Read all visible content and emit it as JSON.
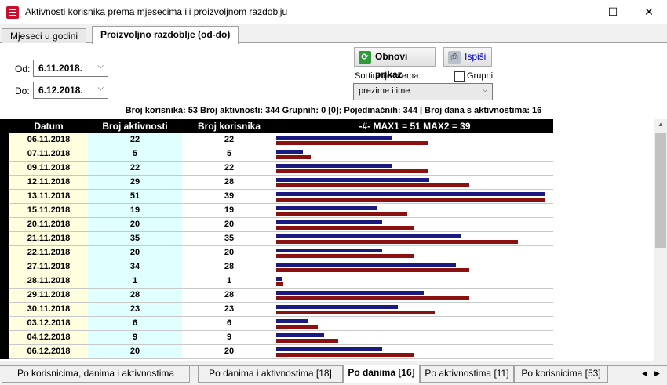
{
  "window": {
    "title": "Aktivnosti korisnika prema mjesecima ili proizvoljnom razdoblju",
    "minimize": "—",
    "maximize": "☐",
    "close": "✕"
  },
  "top_tabs": [
    {
      "label": "Mjeseci u godini"
    },
    {
      "label": "Proizvoljno razdoblje (od-do)"
    }
  ],
  "filters": {
    "od_label": "Od:",
    "od_value": "6.11.2018.",
    "do_label": "Do:",
    "do_value": "6.12.2018.",
    "refresh_label": "Obnovi prikaz",
    "print_label": "Ispiši",
    "sort_label": "Sortiranje prema:",
    "sort_value": "prezime i ime",
    "group_label": "Grupni",
    "group_checked": false
  },
  "summary": "Broj korisnika: 53   Broj aktivnosti: 344  Grupnih: 0 [0]; Pojedinačnih: 344  | Broj dana s aktivnostima: 16",
  "table": {
    "headers": [
      "Datum",
      "Broj aktivnosti",
      "Broj korisnika",
      "-#-  MAX1 = 51   MAX2 = 39"
    ],
    "max1": 51,
    "max2": 39,
    "rows": [
      {
        "date": "06.11.2018",
        "activities": 22,
        "users": 22
      },
      {
        "date": "07.11.2018",
        "activities": 5,
        "users": 5
      },
      {
        "date": "09.11.2018",
        "activities": 22,
        "users": 22
      },
      {
        "date": "12.11.2018",
        "activities": 29,
        "users": 28
      },
      {
        "date": "13.11.2018",
        "activities": 51,
        "users": 39
      },
      {
        "date": "15.11.2018",
        "activities": 19,
        "users": 19
      },
      {
        "date": "20.11.2018",
        "activities": 20,
        "users": 20
      },
      {
        "date": "21.11.2018",
        "activities": 35,
        "users": 35
      },
      {
        "date": "22.11.2018",
        "activities": 20,
        "users": 20
      },
      {
        "date": "27.11.2018",
        "activities": 34,
        "users": 28
      },
      {
        "date": "28.11.2018",
        "activities": 1,
        "users": 1
      },
      {
        "date": "29.11.2018",
        "activities": 28,
        "users": 28
      },
      {
        "date": "30.11.2018",
        "activities": 23,
        "users": 23
      },
      {
        "date": "03.12.2018",
        "activities": 6,
        "users": 6
      },
      {
        "date": "04.12.2018",
        "activities": 9,
        "users": 9
      },
      {
        "date": "06.12.2018",
        "activities": 20,
        "users": 20
      }
    ]
  },
  "colors": {
    "bar_activities": "#1a1a80",
    "bar_users": "#8b1010"
  },
  "bottom_tabs": [
    {
      "label": "Po korisnicima, danima i aktivnostima"
    },
    {
      "label": "Po danima i aktivnostima [18]"
    },
    {
      "label": "Po danima [16]"
    },
    {
      "label": "Po aktivnostima [11]"
    },
    {
      "label": "Po korisnicima [53]"
    }
  ]
}
